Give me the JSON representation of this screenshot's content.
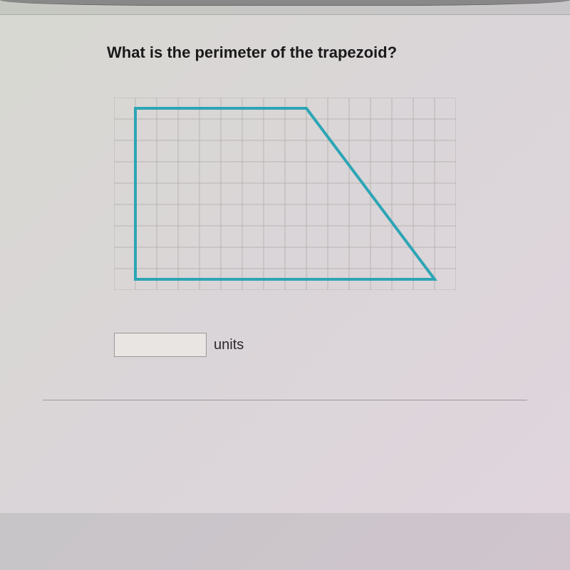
{
  "question": {
    "text": "What is the perimeter of the trapezoid?",
    "fontsize": 22,
    "fontweight": "bold",
    "color": "#1a1a1a"
  },
  "grid": {
    "cols": 16,
    "rows": 9,
    "cell_size": 30,
    "line_color": "#b8b5b2",
    "line_width": 1,
    "background": "transparent"
  },
  "trapezoid": {
    "type": "polygon",
    "stroke_color": "#2da5b5",
    "stroke_width": 4,
    "fill": "none",
    "vertices": [
      {
        "gx": 1,
        "gy": 0.5
      },
      {
        "gx": 9,
        "gy": 0.5
      },
      {
        "gx": 15,
        "gy": 8.5
      },
      {
        "gx": 1,
        "gy": 8.5
      }
    ]
  },
  "answer": {
    "input_value": "",
    "placeholder": "",
    "units_label": "units",
    "units_fontsize": 20,
    "units_color": "#2a2a2a"
  },
  "layout": {
    "page_bg_gradient": [
      "#d8d8d2",
      "#dad5d8",
      "#e0d5dd"
    ],
    "body_bg_gradient": [
      "#c5c8c0",
      "#c8c5c8",
      "#d0c5cd"
    ]
  }
}
